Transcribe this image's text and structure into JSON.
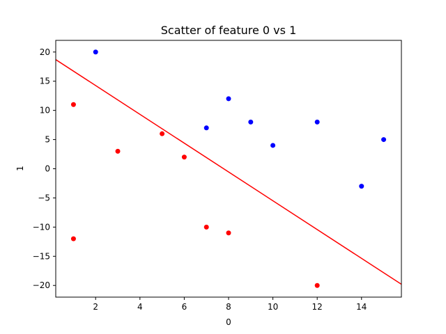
{
  "chart_data": {
    "type": "scatter",
    "title": "Scatter of feature 0 vs 1",
    "xlabel": "0",
    "ylabel": "1",
    "xlim": [
      0.2,
      15.8
    ],
    "ylim": [
      -22,
      22
    ],
    "grid": false,
    "xticks": [
      2,
      4,
      6,
      8,
      10,
      12,
      14
    ],
    "yticks": [
      -20,
      -15,
      -10,
      -5,
      0,
      5,
      10,
      15,
      20
    ],
    "xtick_labels": [
      "2",
      "4",
      "6",
      "8",
      "10",
      "12",
      "14"
    ],
    "ytick_labels": [
      "−20",
      "−15",
      "−10",
      "−5",
      "0",
      "5",
      "10",
      "15",
      "20"
    ],
    "series": [
      {
        "color": "#0000ff",
        "points": [
          {
            "x": 2,
            "y": 20
          },
          {
            "x": 7,
            "y": 7
          },
          {
            "x": 8,
            "y": 12
          },
          {
            "x": 9,
            "y": 8
          },
          {
            "x": 10,
            "y": 4
          },
          {
            "x": 12,
            "y": 8
          },
          {
            "x": 14,
            "y": -3
          },
          {
            "x": 15,
            "y": 5
          }
        ]
      },
      {
        "color": "#ff0000",
        "points": [
          {
            "x": 1,
            "y": 11
          },
          {
            "x": 1,
            "y": -12
          },
          {
            "x": 3,
            "y": 3
          },
          {
            "x": 5,
            "y": 6
          },
          {
            "x": 6,
            "y": 2
          },
          {
            "x": 7,
            "y": -10
          },
          {
            "x": 8,
            "y": -11
          },
          {
            "x": 12,
            "y": -20
          }
        ]
      }
    ],
    "line": {
      "color": "#ff0000",
      "points": [
        {
          "x": 0.2,
          "y": 18.7
        },
        {
          "x": 15.8,
          "y": -19.8
        }
      ]
    }
  }
}
